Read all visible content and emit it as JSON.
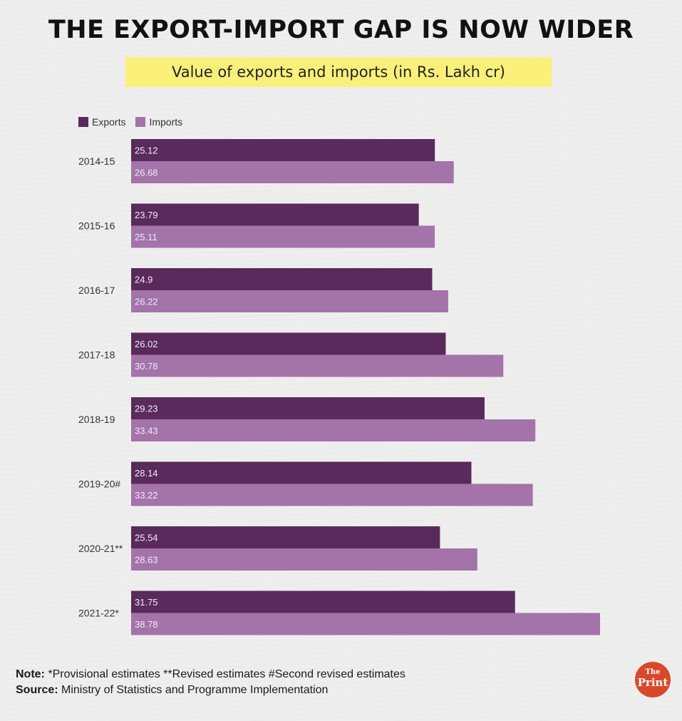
{
  "chart_data": {
    "type": "bar",
    "orientation": "horizontal",
    "title": "THE EXPORT-IMPORT GAP IS NOW WIDER",
    "subtitle": "Value of exports and imports (in Rs. Lakh cr)",
    "categories": [
      "2014-15",
      "2015-16",
      "2016-17",
      "2017-18",
      "2018-19",
      "2019-20#",
      "2020-21**",
      "2021-22*"
    ],
    "series": [
      {
        "name": "Exports",
        "color": "#5a2a5c",
        "values": [
          25.12,
          23.79,
          24.9,
          26.02,
          29.23,
          28.14,
          25.54,
          31.75
        ]
      },
      {
        "name": "Imports",
        "color": "#a373aa",
        "values": [
          26.68,
          25.11,
          26.22,
          30.78,
          33.43,
          33.22,
          28.63,
          38.78
        ]
      }
    ],
    "value_labels": {
      "Exports": [
        "25.12",
        "23.79",
        "24.9",
        "26.02",
        "29.23",
        "28.14",
        "25.54",
        "31.75"
      ],
      "Imports": [
        "26.68",
        "25.11",
        "26.22",
        "30.78",
        "33.43",
        "33.22",
        "28.63",
        "38.78"
      ]
    },
    "xlim": [
      0,
      38.78
    ],
    "grid": false,
    "legend": "top-left"
  },
  "footer": {
    "note_label": "Note:",
    "note_text": " *Provisional estimates **Revised estimates #Second revised estimates",
    "source_label": "Source:",
    "source_text": " Ministry of Statistics and Programme Implementation"
  },
  "logo": {
    "the": "The",
    "print": "Print"
  }
}
